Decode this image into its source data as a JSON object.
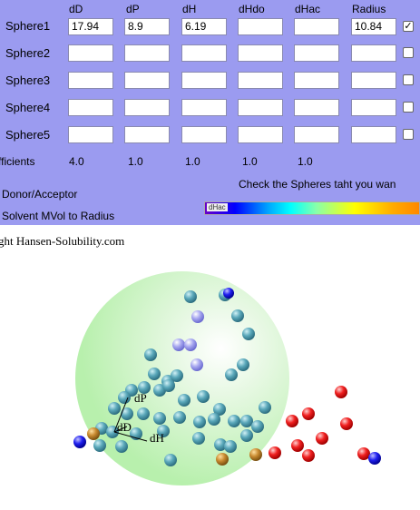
{
  "columns": [
    "dD",
    "dP",
    "dH",
    "dHdo",
    "dHac",
    "Radius"
  ],
  "spheres": [
    {
      "label": "Sphere1",
      "values": [
        "17.94",
        "8.9",
        "6.19",
        "",
        "",
        "10.84"
      ],
      "checked": true
    },
    {
      "label": "Sphere2",
      "values": [
        "",
        "",
        "",
        "",
        "",
        ""
      ],
      "checked": false
    },
    {
      "label": "Sphere3",
      "values": [
        "",
        "",
        "",
        "",
        "",
        ""
      ],
      "checked": false
    },
    {
      "label": "Sphere4",
      "values": [
        "",
        "",
        "",
        "",
        "",
        ""
      ],
      "checked": false
    },
    {
      "label": "Sphere5",
      "values": [
        "",
        "",
        "",
        "",
        "",
        ""
      ],
      "checked": false
    }
  ],
  "coefficients": {
    "label": "fficients",
    "values": [
      "4.0",
      "1.0",
      "1.0",
      "1.0",
      "1.0"
    ]
  },
  "options": [
    "l Donor/Acceptor",
    "l Solvent MVol to Radius"
  ],
  "hint": "Check the Spheres taht you wan",
  "gradient_label": "dHac",
  "copyright": "ght Hansen-Solubility.com",
  "axis_labels": {
    "dP": "dP",
    "dD": "dD",
    "dH": "dH"
  },
  "checkmark": "✓",
  "colors": {
    "panel": "#9b9bf0",
    "sphere_fill": "#c8f5c0",
    "inside": "#4aa3b8",
    "outside": "#e82020"
  }
}
